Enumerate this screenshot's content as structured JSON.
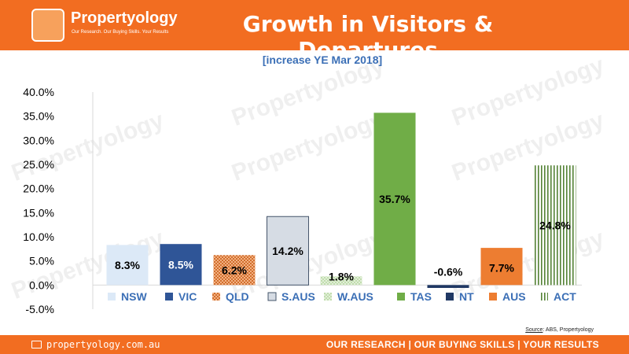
{
  "header": {
    "brand": "Propertyology",
    "tagline": "Our Research. Our Buying Skills. Your Results",
    "title": "Growth in Visitors & Departures"
  },
  "watermark": "Propertyology",
  "source": {
    "label": "Source",
    "text": ": ABS, Propertyology"
  },
  "footer": {
    "url": "propertyology.com.au",
    "tagline": "OUR RESEARCH | OUR BUYING SKILLS | YOUR RESULTS"
  },
  "colors": {
    "brand_orange": "#f26d21",
    "subtitle_blue": "#3b6fb6"
  },
  "chart_data": {
    "type": "bar",
    "title": "[increase YE Mar 2018]",
    "xlabel": "",
    "ylabel": "",
    "ylim": [
      -5,
      40
    ],
    "yticks": [
      -5,
      0,
      5,
      10,
      15,
      20,
      25,
      30,
      35,
      40
    ],
    "ytick_labels": [
      "-5.0%",
      "0.0%",
      "5.0%",
      "10.0%",
      "15.0%",
      "20.0%",
      "25.0%",
      "30.0%",
      "35.0%",
      "40.0%"
    ],
    "categories": [
      "NSW",
      "VIC",
      "QLD",
      "S.AUS",
      "W.AUS",
      "TAS",
      "NT",
      "AUS",
      "ACT"
    ],
    "values": [
      8.3,
      8.5,
      6.2,
      14.2,
      1.8,
      35.7,
      -0.6,
      7.7,
      24.8
    ],
    "data_labels": [
      "8.3%",
      "8.5%",
      "6.2%",
      "14.2%",
      "1.8%",
      "35.7%",
      "-0.6%",
      "7.7%",
      "24.8%"
    ],
    "legend": "bottom",
    "grid": false,
    "series_styles": [
      {
        "fill": "#dce9f7",
        "pattern": "solid",
        "label_color": "#000000"
      },
      {
        "fill": "#2f5597",
        "pattern": "solid",
        "label_color": "#ffffff"
      },
      {
        "fill": "#ed7d31",
        "pattern": "dots",
        "label_color": "#000000"
      },
      {
        "fill": "#d6dce4",
        "pattern": "solid",
        "label_color": "#000000"
      },
      {
        "fill": "#a9d18e",
        "pattern": "dots",
        "label_color": "#000000"
      },
      {
        "fill": "#70ad47",
        "pattern": "solid",
        "label_color": "#000000"
      },
      {
        "fill": "#203864",
        "pattern": "solid",
        "label_color": "#000000"
      },
      {
        "fill": "#ed7d31",
        "pattern": "solid",
        "label_color": "#000000"
      },
      {
        "fill": "#548235",
        "pattern": "vlines",
        "label_color": "#000000"
      }
    ]
  }
}
